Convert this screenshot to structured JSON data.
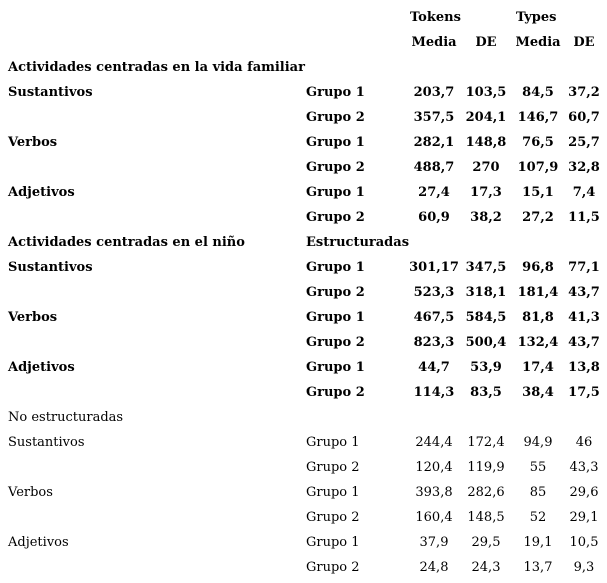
{
  "header": {
    "tokens": "Tokens",
    "types": "Types",
    "cols": [
      "Media",
      "DE",
      "Media",
      "DE"
    ]
  },
  "sections": [
    {
      "title": "Actividades centradas en la vida familiar",
      "subtitle": "",
      "rows": [
        {
          "label": "Sustantivos",
          "group": "Grupo 1",
          "values": [
            "203,7",
            "103,5",
            "84,5",
            "37,2"
          ]
        },
        {
          "label": "",
          "group": "Grupo 2",
          "values": [
            "357,5",
            "204,1",
            "146,7",
            "60,7"
          ]
        },
        {
          "label": "Verbos",
          "group": "Grupo 1",
          "values": [
            "282,1",
            "148,8",
            "76,5",
            "25,7"
          ]
        },
        {
          "label": "",
          "group": "Grupo 2",
          "values": [
            "488,7",
            "270",
            "107,9",
            "32,8"
          ]
        },
        {
          "label": "Adjetivos",
          "group": "Grupo 1",
          "values": [
            "27,4",
            "17,3",
            "15,1",
            "7,4"
          ]
        },
        {
          "label": "",
          "group": "Grupo 2",
          "values": [
            "60,9",
            "38,2",
            "27,2",
            "11,5"
          ]
        }
      ]
    },
    {
      "title": "Actividades centradas en el niño",
      "subtitle": "Estructuradas",
      "rows": [
        {
          "label": "Sustantivos",
          "group": "Grupo 1",
          "values": [
            "301,17",
            "347,5",
            "96,8",
            "77,1"
          ]
        },
        {
          "label": "",
          "group": "Grupo 2",
          "values": [
            "523,3",
            "318,1",
            "181,4",
            "43,7"
          ]
        },
        {
          "label": "Verbos",
          "group": "Grupo 1",
          "values": [
            "467,5",
            "584,5",
            "81,8",
            "41,3"
          ]
        },
        {
          "label": "",
          "group": "Grupo 2",
          "values": [
            "823,3",
            "500,4",
            "132,4",
            "43,7"
          ]
        },
        {
          "label": "Adjetivos",
          "group": "Grupo 1",
          "values": [
            "44,7",
            "53,9",
            "17,4",
            "13,8"
          ]
        },
        {
          "label": "",
          "group": "Grupo 2",
          "values": [
            "114,3",
            "83,5",
            "38,4",
            "17,5"
          ]
        }
      ]
    },
    {
      "title": "No estructuradas",
      "subtitle": "",
      "rows": [
        {
          "label": "Sustantivos",
          "group": "Grupo 1",
          "values": [
            "244,4",
            "172,4",
            "94,9",
            "46"
          ]
        },
        {
          "label": "",
          "group": "Grupo 2",
          "values": [
            "120,4",
            "119,9",
            "55",
            "43,3"
          ]
        },
        {
          "label": "Verbos",
          "group": "Grupo 1",
          "values": [
            "393,8",
            "282,6",
            "85",
            "29,6"
          ]
        },
        {
          "label": "",
          "group": "Grupo 2",
          "values": [
            "160,4",
            "148,5",
            "52",
            "29,1"
          ]
        },
        {
          "label": "Adjetivos",
          "group": "Grupo 1",
          "values": [
            "37,9",
            "29,5",
            "19,1",
            "10,5"
          ]
        },
        {
          "label": "",
          "group": "Grupo 2",
          "values": [
            "24,8",
            "24,3",
            "13,7",
            "9,3"
          ]
        }
      ]
    }
  ]
}
